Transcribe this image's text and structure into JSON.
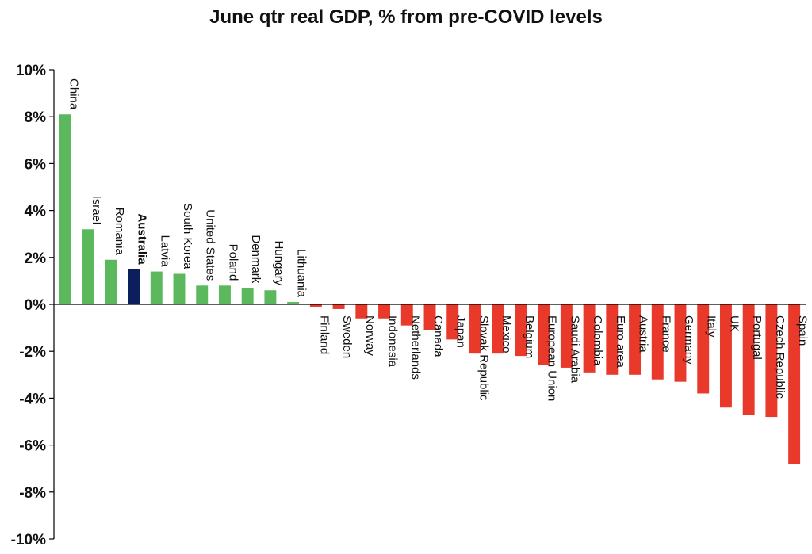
{
  "chart_data": {
    "type": "bar",
    "title": "June qtr real GDP, % from pre-COVID levels",
    "xlabel": "",
    "ylabel": "",
    "ylim": [
      -10,
      10
    ],
    "y_ticks": [
      "10%",
      "8%",
      "6%",
      "4%",
      "2%",
      "0%",
      "-2%",
      "-4%",
      "-6%",
      "-8%",
      "-10%"
    ],
    "categories": [
      "China",
      "Israel",
      "Romania",
      "Australia",
      "Latvia",
      "South Korea",
      "United States",
      "Poland",
      "Denmark",
      "Hungary",
      "Lithuania",
      "Finland",
      "Sweden",
      "Norway",
      "Indonesia",
      "Netherlands",
      "Canada",
      "Japan",
      "Slovak Republic",
      "Mexico",
      "Belgium",
      "European Union",
      "Saudi Arabia",
      "Colombia",
      "Euro area",
      "Austria",
      "France",
      "Germany",
      "Italy",
      "UK",
      "Portugal",
      "Czech Republic",
      "Spain"
    ],
    "values": [
      8.1,
      3.2,
      1.9,
      1.5,
      1.4,
      1.3,
      0.8,
      0.8,
      0.7,
      0.6,
      0.1,
      -0.1,
      -0.2,
      -0.6,
      -0.6,
      -0.9,
      -1.1,
      -1.5,
      -2.1,
      -2.1,
      -2.2,
      -2.6,
      -2.7,
      -2.9,
      -3.0,
      -3.0,
      -3.2,
      -3.3,
      -3.8,
      -4.4,
      -4.7,
      -4.8,
      -6.8
    ],
    "highlight": "Australia",
    "colors": {
      "positive": "#5cb85c",
      "negative": "#e8392b",
      "highlight": "#0b1f5c"
    },
    "grid": false,
    "legend": "none"
  }
}
